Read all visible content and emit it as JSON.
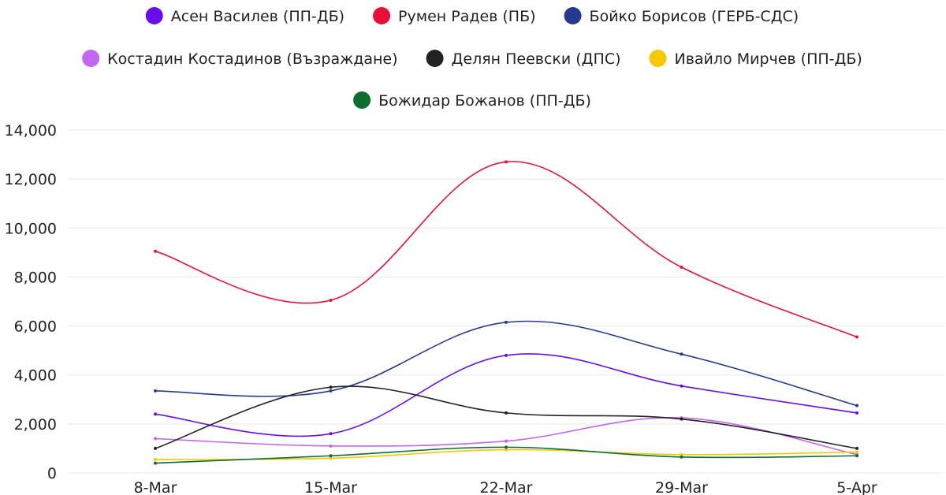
{
  "chart_data": {
    "type": "line",
    "title": "",
    "xlabel": "",
    "ylabel": "",
    "categories": [
      "8-Mar",
      "15-Mar",
      "22-Mar",
      "29-Mar",
      "5-Apr"
    ],
    "ylim": [
      0,
      14000
    ],
    "yticks": [
      0,
      2000,
      4000,
      6000,
      8000,
      10000,
      12000,
      14000
    ],
    "ytick_labels": [
      "0",
      "2,000",
      "4,000",
      "6,000",
      "8,000",
      "10,000",
      "12,000",
      "14,000"
    ],
    "grid": true,
    "legend_position": "top-center",
    "curve": "smooth",
    "series": [
      {
        "name": "Асен Василев (ПП-ДБ)",
        "color": "#6a0dee",
        "values": [
          2400,
          1600,
          4800,
          3550,
          2450
        ]
      },
      {
        "name": "Румен Радев (ПБ)",
        "color": "#e8103a",
        "values": [
          9050,
          7050,
          12700,
          8400,
          5550
        ]
      },
      {
        "name": "Бойко Борисов (ГЕРБ-СДС)",
        "color": "#233a8f",
        "values": [
          3350,
          3350,
          6150,
          4850,
          2750
        ]
      },
      {
        "name": "Костадин Костадинов (Възраждане)",
        "color": "#c066f2",
        "values": [
          1400,
          1100,
          1300,
          2250,
          750
        ]
      },
      {
        "name": "Делян Пеевски (ДПС)",
        "color": "#222222",
        "values": [
          1000,
          3500,
          2450,
          2200,
          1000
        ]
      },
      {
        "name": "Ивайло Мирчев (ПП-ДБ)",
        "color": "#f6c800",
        "values": [
          550,
          600,
          950,
          750,
          850
        ]
      },
      {
        "name": "Божидар Божанов (ПП-ДБ)",
        "color": "#0b6e2e",
        "values": [
          400,
          700,
          1050,
          650,
          700
        ]
      }
    ]
  }
}
